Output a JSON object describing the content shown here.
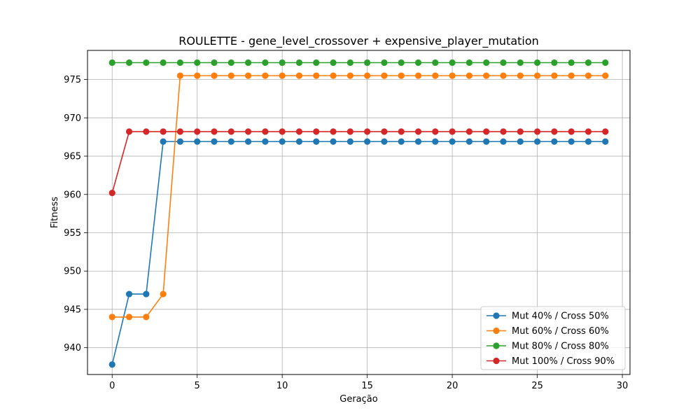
{
  "chart_data": {
    "type": "line",
    "title": "ROULETTE - gene_level_crossover + expensive_player_mutation",
    "xlabel": "Geração",
    "ylabel": "Fitness",
    "xlim": [
      -1.45,
      30.45
    ],
    "ylim": [
      936.5,
      978.8
    ],
    "xticks": [
      0,
      5,
      10,
      15,
      20,
      25,
      30
    ],
    "yticks": [
      940,
      945,
      950,
      955,
      960,
      965,
      970,
      975
    ],
    "grid": true,
    "legend_position": "lower-right",
    "x": [
      0,
      1,
      2,
      3,
      4,
      5,
      6,
      7,
      8,
      9,
      10,
      11,
      12,
      13,
      14,
      15,
      16,
      17,
      18,
      19,
      20,
      21,
      22,
      23,
      24,
      25,
      26,
      27,
      28,
      29
    ],
    "series": [
      {
        "name": "Mut 40% / Cross 50%",
        "color": "#1f77b4",
        "values": [
          937.8,
          947.0,
          947.0,
          966.9,
          966.9,
          966.9,
          966.9,
          966.9,
          966.9,
          966.9,
          966.9,
          966.9,
          966.9,
          966.9,
          966.9,
          966.9,
          966.9,
          966.9,
          966.9,
          966.9,
          966.9,
          966.9,
          966.9,
          966.9,
          966.9,
          966.9,
          966.9,
          966.9,
          966.9,
          966.9
        ]
      },
      {
        "name": "Mut 60% / Cross 60%",
        "color": "#ff7f0e",
        "values": [
          944.0,
          944.0,
          944.0,
          947.0,
          975.5,
          975.5,
          975.5,
          975.5,
          975.5,
          975.5,
          975.5,
          975.5,
          975.5,
          975.5,
          975.5,
          975.5,
          975.5,
          975.5,
          975.5,
          975.5,
          975.5,
          975.5,
          975.5,
          975.5,
          975.5,
          975.5,
          975.5,
          975.5,
          975.5,
          975.5
        ]
      },
      {
        "name": "Mut 80% / Cross 80%",
        "color": "#2ca02c",
        "values": [
          977.2,
          977.2,
          977.2,
          977.2,
          977.2,
          977.2,
          977.2,
          977.2,
          977.2,
          977.2,
          977.2,
          977.2,
          977.2,
          977.2,
          977.2,
          977.2,
          977.2,
          977.2,
          977.2,
          977.2,
          977.2,
          977.2,
          977.2,
          977.2,
          977.2,
          977.2,
          977.2,
          977.2,
          977.2,
          977.2
        ]
      },
      {
        "name": "Mut 100% / Cross 90%",
        "color": "#d62728",
        "values": [
          960.2,
          968.2,
          968.2,
          968.2,
          968.2,
          968.2,
          968.2,
          968.2,
          968.2,
          968.2,
          968.2,
          968.2,
          968.2,
          968.2,
          968.2,
          968.2,
          968.2,
          968.2,
          968.2,
          968.2,
          968.2,
          968.2,
          968.2,
          968.2,
          968.2,
          968.2,
          968.2,
          968.2,
          968.2,
          968.2
        ]
      }
    ]
  }
}
